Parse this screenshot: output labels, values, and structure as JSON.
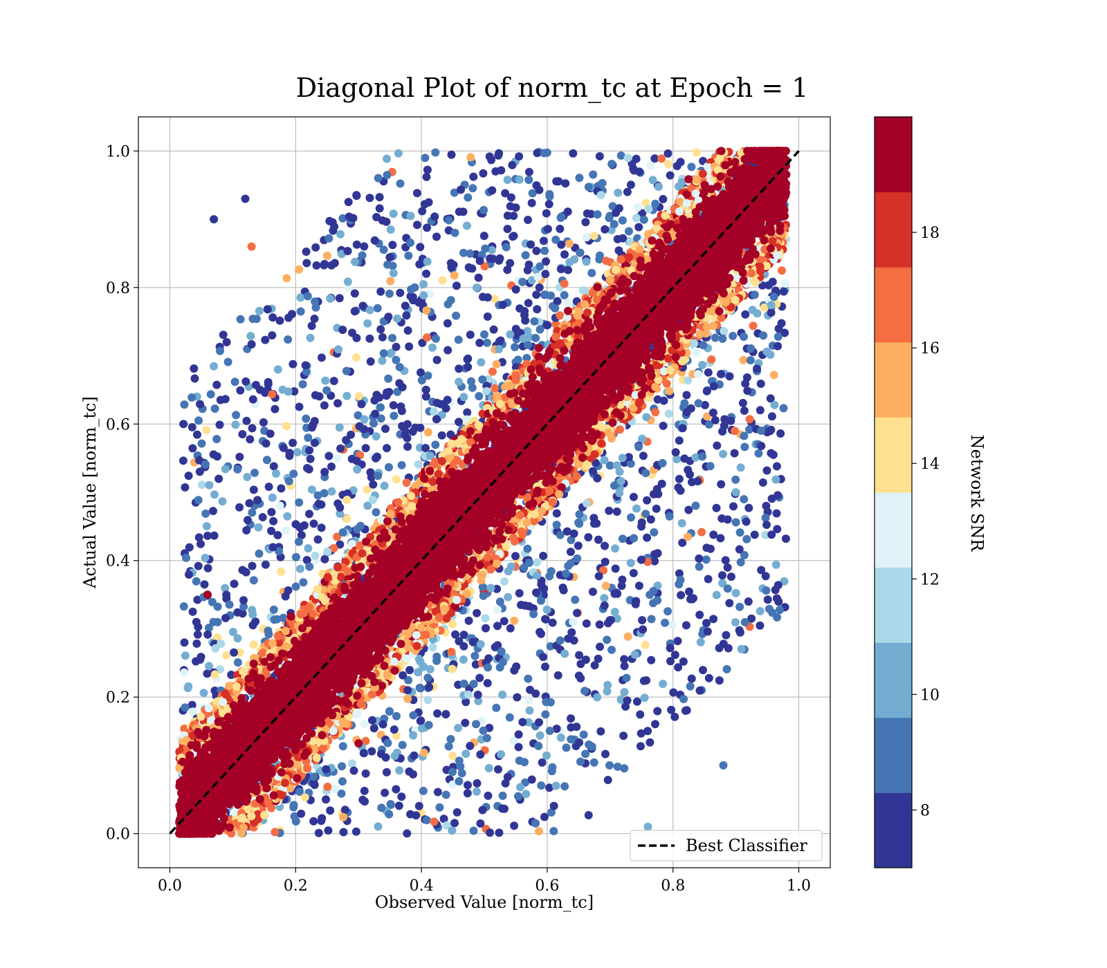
{
  "chart_data": {
    "type": "scatter",
    "title": "Diagonal Plot of norm_tc at Epoch = 1",
    "xlabel": "Observed Value [norm_tc]",
    "ylabel": "Actual Value [norm_tc]",
    "xlim": [
      -0.05,
      1.05
    ],
    "ylim": [
      -0.05,
      1.05
    ],
    "xticks": [
      "0.0",
      "0.2",
      "0.4",
      "0.6",
      "0.8",
      "1.0"
    ],
    "yticks": [
      "0.0",
      "0.2",
      "0.4",
      "0.6",
      "0.8",
      "1.0"
    ],
    "grid": true,
    "reference_line": {
      "label": "Best Classifier",
      "x": [
        0.0,
        1.0
      ],
      "y": [
        0.0,
        1.0
      ],
      "style": "dashed",
      "color": "#000000"
    },
    "legend": {
      "position": "lower-right",
      "entries": [
        "Best Classifier"
      ]
    },
    "colorbar": {
      "label": "Network SNR",
      "range": [
        7,
        20
      ],
      "ticks": [
        "8",
        "10",
        "12",
        "14",
        "16",
        "18"
      ],
      "colors": [
        "#313695",
        "#4575b4",
        "#74add1",
        "#abd9e9",
        "#e0f3f8",
        "#fee090",
        "#fdae61",
        "#f46d43",
        "#d73027",
        "#a50026"
      ]
    },
    "series": [
      {
        "description_of_distribution": "dense",
        "points_sample": [
          {
            "x": 0.02,
            "y": 0.03,
            "snr": 19.5
          },
          {
            "x": 0.1,
            "y": 0.12,
            "snr": 19.5
          },
          {
            "x": 0.2,
            "y": 0.19,
            "snr": 19.5
          },
          {
            "x": 0.3,
            "y": 0.31,
            "snr": 19.5
          },
          {
            "x": 0.4,
            "y": 0.4,
            "snr": 19.5
          },
          {
            "x": 0.5,
            "y": 0.51,
            "snr": 19.5
          },
          {
            "x": 0.6,
            "y": 0.59,
            "snr": 19.5
          },
          {
            "x": 0.7,
            "y": 0.71,
            "snr": 19.5
          },
          {
            "x": 0.8,
            "y": 0.8,
            "snr": 19.5
          },
          {
            "x": 0.9,
            "y": 0.91,
            "snr": 19.5
          },
          {
            "x": 0.97,
            "y": 0.98,
            "snr": 19.5
          },
          {
            "x": 0.07,
            "y": 0.9,
            "snr": 7.5
          },
          {
            "x": 0.12,
            "y": 0.93,
            "snr": 7.5
          },
          {
            "x": 0.06,
            "y": 0.35,
            "snr": 19.5
          },
          {
            "x": 0.13,
            "y": 0.86,
            "snr": 16.5
          },
          {
            "x": 0.92,
            "y": 0.34,
            "snr": 7.5
          },
          {
            "x": 0.9,
            "y": 0.5,
            "snr": 10.5
          },
          {
            "x": 0.76,
            "y": 0.01,
            "snr": 10.5
          },
          {
            "x": 0.82,
            "y": 0.18,
            "snr": 7.5
          },
          {
            "x": 0.88,
            "y": 0.1,
            "snr": 9.5
          }
        ]
      }
    ]
  }
}
